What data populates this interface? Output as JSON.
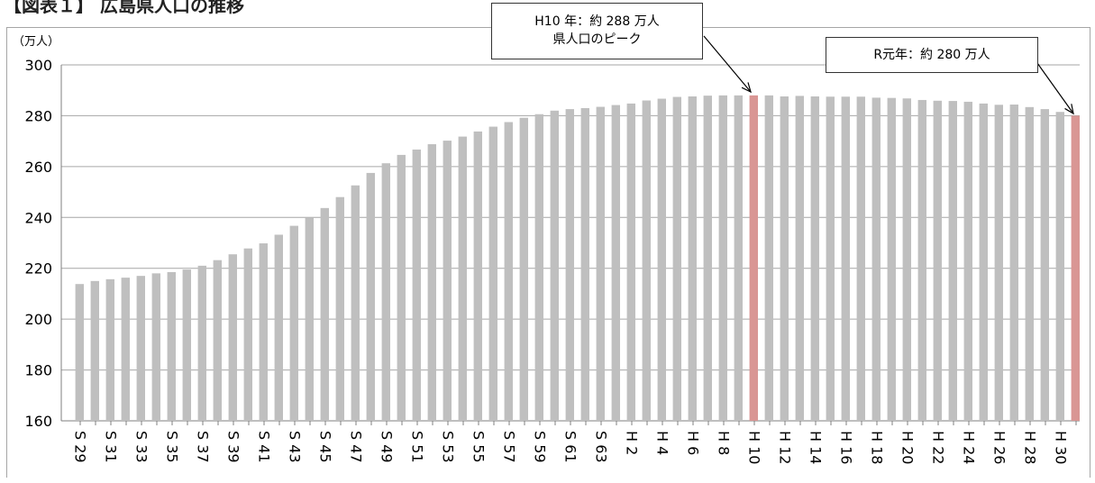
{
  "title": "【図表１】 広島県人口の推移",
  "chart_data": {
    "type": "bar",
    "ylabel": "（万人）",
    "ylim": [
      160,
      300
    ],
    "yticks": [
      160,
      180,
      200,
      220,
      240,
      260,
      280,
      300
    ],
    "grid": true,
    "categories": [
      "S29",
      "S30",
      "S31",
      "S32",
      "S33",
      "S34",
      "S35",
      "S36",
      "S37",
      "S38",
      "S39",
      "S40",
      "S41",
      "S42",
      "S43",
      "S44",
      "S45",
      "S46",
      "S47",
      "S48",
      "S49",
      "S50",
      "S51",
      "S52",
      "S53",
      "S54",
      "S55",
      "S56",
      "S57",
      "S58",
      "S59",
      "S60",
      "S61",
      "S62",
      "S63",
      "H1",
      "H2",
      "H3",
      "H4",
      "H5",
      "H6",
      "H7",
      "H8",
      "H9",
      "H10",
      "H11",
      "H12",
      "H13",
      "H14",
      "H15",
      "H16",
      "H17",
      "H18",
      "H19",
      "H20",
      "H21",
      "H22",
      "H23",
      "H24",
      "H25",
      "H26",
      "H27",
      "H28",
      "H29",
      "H30",
      "R1"
    ],
    "tick_labels": [
      "S 29",
      "S 31",
      "S 33",
      "S 35",
      "S 37",
      "S 39",
      "S 41",
      "S 43",
      "S 45",
      "S 47",
      "S 49",
      "S 51",
      "S 53",
      "S 55",
      "S 57",
      "S 59",
      "S 61",
      "S 63",
      "H 2",
      "H 4",
      "H 6",
      "H 8",
      "H 10",
      "H 12",
      "H 14",
      "H 16",
      "H 18",
      "H 20",
      "H 22",
      "H 24",
      "H 26",
      "H 28",
      "H 30"
    ],
    "values": [
      213.8,
      215.0,
      215.7,
      216.3,
      217.0,
      218.0,
      218.5,
      219.5,
      221.0,
      223.2,
      225.5,
      227.8,
      229.8,
      233.2,
      236.7,
      240.0,
      243.7,
      248.0,
      252.6,
      257.5,
      261.3,
      264.6,
      266.7,
      268.8,
      270.2,
      271.8,
      273.8,
      275.7,
      277.5,
      279.2,
      280.6,
      282.0,
      282.6,
      283.0,
      283.5,
      284.2,
      284.8,
      286.0,
      286.7,
      287.4,
      287.6,
      287.9,
      288.0,
      288.0,
      288.0,
      288.0,
      287.6,
      287.8,
      287.6,
      287.5,
      287.5,
      287.5,
      287.1,
      287.0,
      286.8,
      286.2,
      285.9,
      285.8,
      285.5,
      284.8,
      284.3,
      284.4,
      283.4,
      282.6,
      281.5,
      280.0
    ],
    "bar_color": "#bfbfbf",
    "highlight_color": "#d99694",
    "highlight_categories": [
      "H10",
      "R1"
    ],
    "annotations": [
      {
        "target": "H10",
        "lines": [
          "H10 年：約 288 万人",
          "県人口のピーク"
        ]
      },
      {
        "target": "R1",
        "lines": [
          "R元年：約 280 万人"
        ]
      }
    ]
  }
}
